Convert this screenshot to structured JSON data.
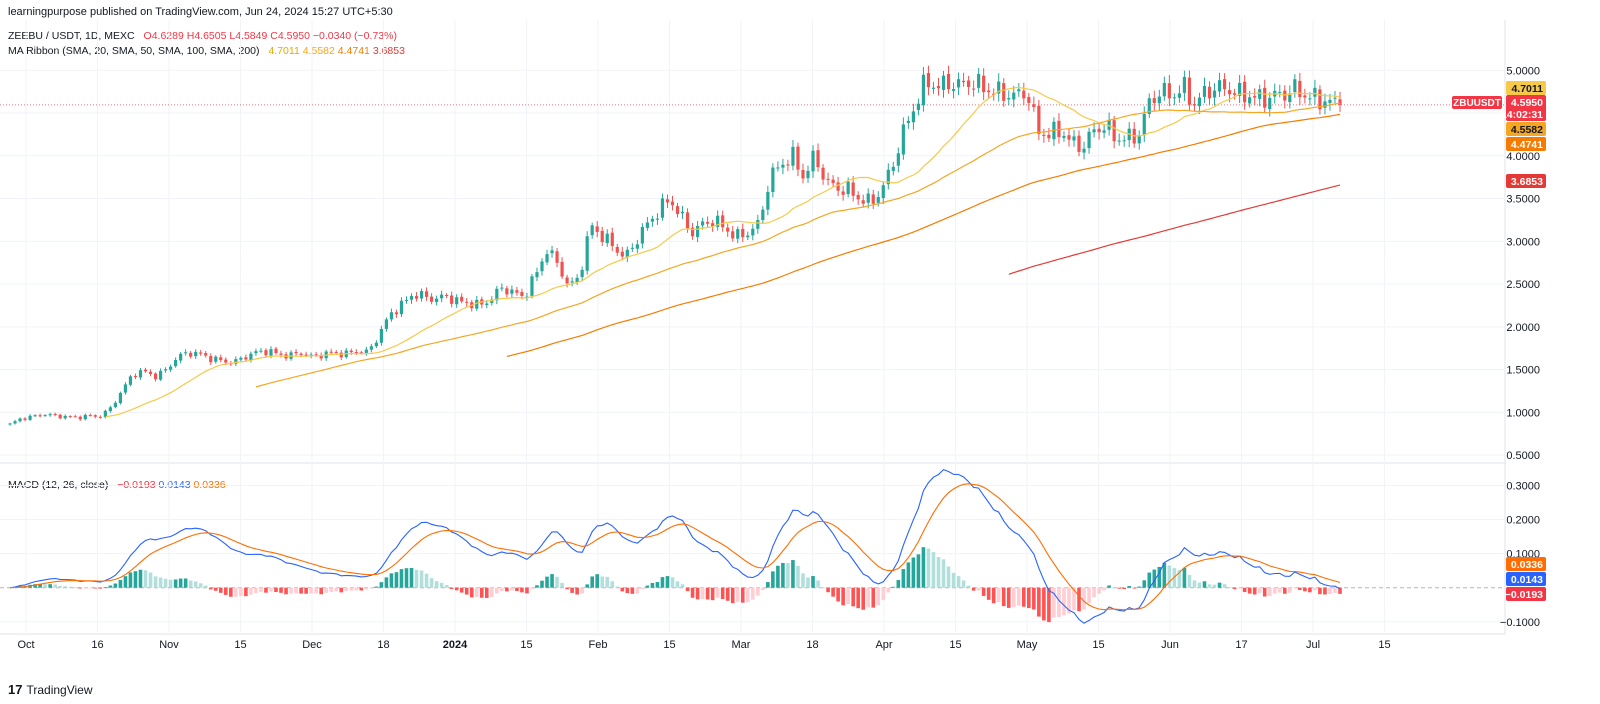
{
  "header": {
    "published": "learningpurpose published on TradingView.com, Jun 24, 2024 15:27 UTC+5:30",
    "symbol": "ZEEBU / USDT, 1D, MEXC",
    "open": "O4.6289",
    "high": "H4.6505",
    "low": "L4.5849",
    "close": "C4.5950",
    "change": "−0.0340 (−0.73%)",
    "ma_label": "MA Ribbon (SMA, 20, SMA, 50, SMA, 100, SMA, 200)",
    "ma_values": [
      "4.7011",
      "4.5582",
      "4.4741",
      "3.6853"
    ],
    "macd_label": "MACD (12, 26, close)",
    "macd_values": [
      "−0.0193",
      "0.0143",
      "0.0336"
    ]
  },
  "brand": {
    "logo": "17",
    "name": "TradingView"
  },
  "colors": {
    "up": "#26a69a",
    "down": "#ef5350",
    "ma20": "#f7c948",
    "ma50": "#f5a623",
    "ma100": "#f57c00",
    "ma200": "#e53935",
    "macd": "#2962ff",
    "signal": "#ff6d00"
  },
  "chart_data": [
    {
      "type": "candlestick",
      "title": "ZEEBU / USDT, 1D, MEXC",
      "x_axis_labels": [
        "Oct",
        "16",
        "Nov",
        "15",
        "Dec",
        "18",
        "2024",
        "15",
        "Feb",
        "15",
        "Mar",
        "18",
        "Apr",
        "15",
        "May",
        "15",
        "Jun",
        "17",
        "Jul",
        "15"
      ],
      "y_ticks": [
        "5.0000",
        "4.5000",
        "4.0000",
        "3.5000",
        "3.0000",
        "2.5000",
        "2.0000",
        "1.5000",
        "1.0000",
        "0.5000"
      ],
      "ylim": [
        0.42,
        5.12
      ],
      "close_series": [
        0.86,
        0.93,
        0.95,
        0.98,
        0.96,
        0.95,
        0.94,
        0.96,
        0.95,
        1.05,
        1.25,
        1.45,
        1.48,
        1.42,
        1.5,
        1.65,
        1.7,
        1.68,
        1.63,
        1.6,
        1.58,
        1.65,
        1.7,
        1.72,
        1.68,
        1.66,
        1.7,
        1.65,
        1.68,
        1.7,
        1.68,
        1.72,
        1.7,
        1.9,
        2.15,
        2.25,
        2.38,
        2.36,
        2.32,
        2.36,
        2.3,
        2.28,
        2.25,
        2.32,
        2.46,
        2.4,
        2.35,
        2.6,
        2.9,
        2.75,
        2.45,
        2.62,
        3.2,
        3.05,
        2.95,
        2.8,
        3.0,
        3.2,
        3.35,
        3.5,
        3.3,
        3.1,
        3.2,
        3.25,
        3.15,
        3.05,
        3.1,
        3.2,
        3.75,
        3.9,
        4.0,
        3.75,
        4.0,
        3.7,
        3.62,
        3.6,
        3.5,
        3.45,
        3.6,
        3.9,
        4.3,
        4.6,
        4.88,
        4.8,
        4.85,
        4.82,
        4.86,
        4.8,
        4.75,
        4.72,
        4.7,
        4.75,
        4.28,
        4.25,
        4.3,
        4.15,
        4.1,
        4.3,
        4.35,
        4.2,
        4.2,
        4.25,
        4.65,
        4.75,
        4.7,
        4.8,
        4.6,
        4.75,
        4.8,
        4.78,
        4.72,
        4.7,
        4.66,
        4.7,
        4.72,
        4.78,
        4.7,
        4.66,
        4.63,
        4.595
      ],
      "series": [
        {
          "name": "SMA 20",
          "last": 4.7011
        },
        {
          "name": "SMA 50",
          "last": 4.5582
        },
        {
          "name": "SMA 100",
          "last": 4.4741
        },
        {
          "name": "SMA 200",
          "last": 3.6853
        }
      ],
      "last_price": {
        "label": "ZBUUSDT",
        "value": "4.5950",
        "countdown": "14:02:31"
      },
      "ma_tags": [
        "4.7011",
        "4.5582",
        "4.4741",
        "3.6853"
      ]
    },
    {
      "type": "line",
      "title": "MACD (12, 26, close)",
      "y_ticks": [
        "0.3000",
        "0.2000",
        "0.1000",
        "−0.1000"
      ],
      "ylim": [
        -0.13,
        0.36
      ],
      "series": [
        {
          "name": "MACD",
          "last": 0.0143
        },
        {
          "name": "Signal",
          "last": 0.0336
        },
        {
          "name": "Histogram",
          "last": -0.0193
        }
      ],
      "tags": [
        "0.0336",
        "0.0143",
        "−0.0193"
      ]
    }
  ]
}
